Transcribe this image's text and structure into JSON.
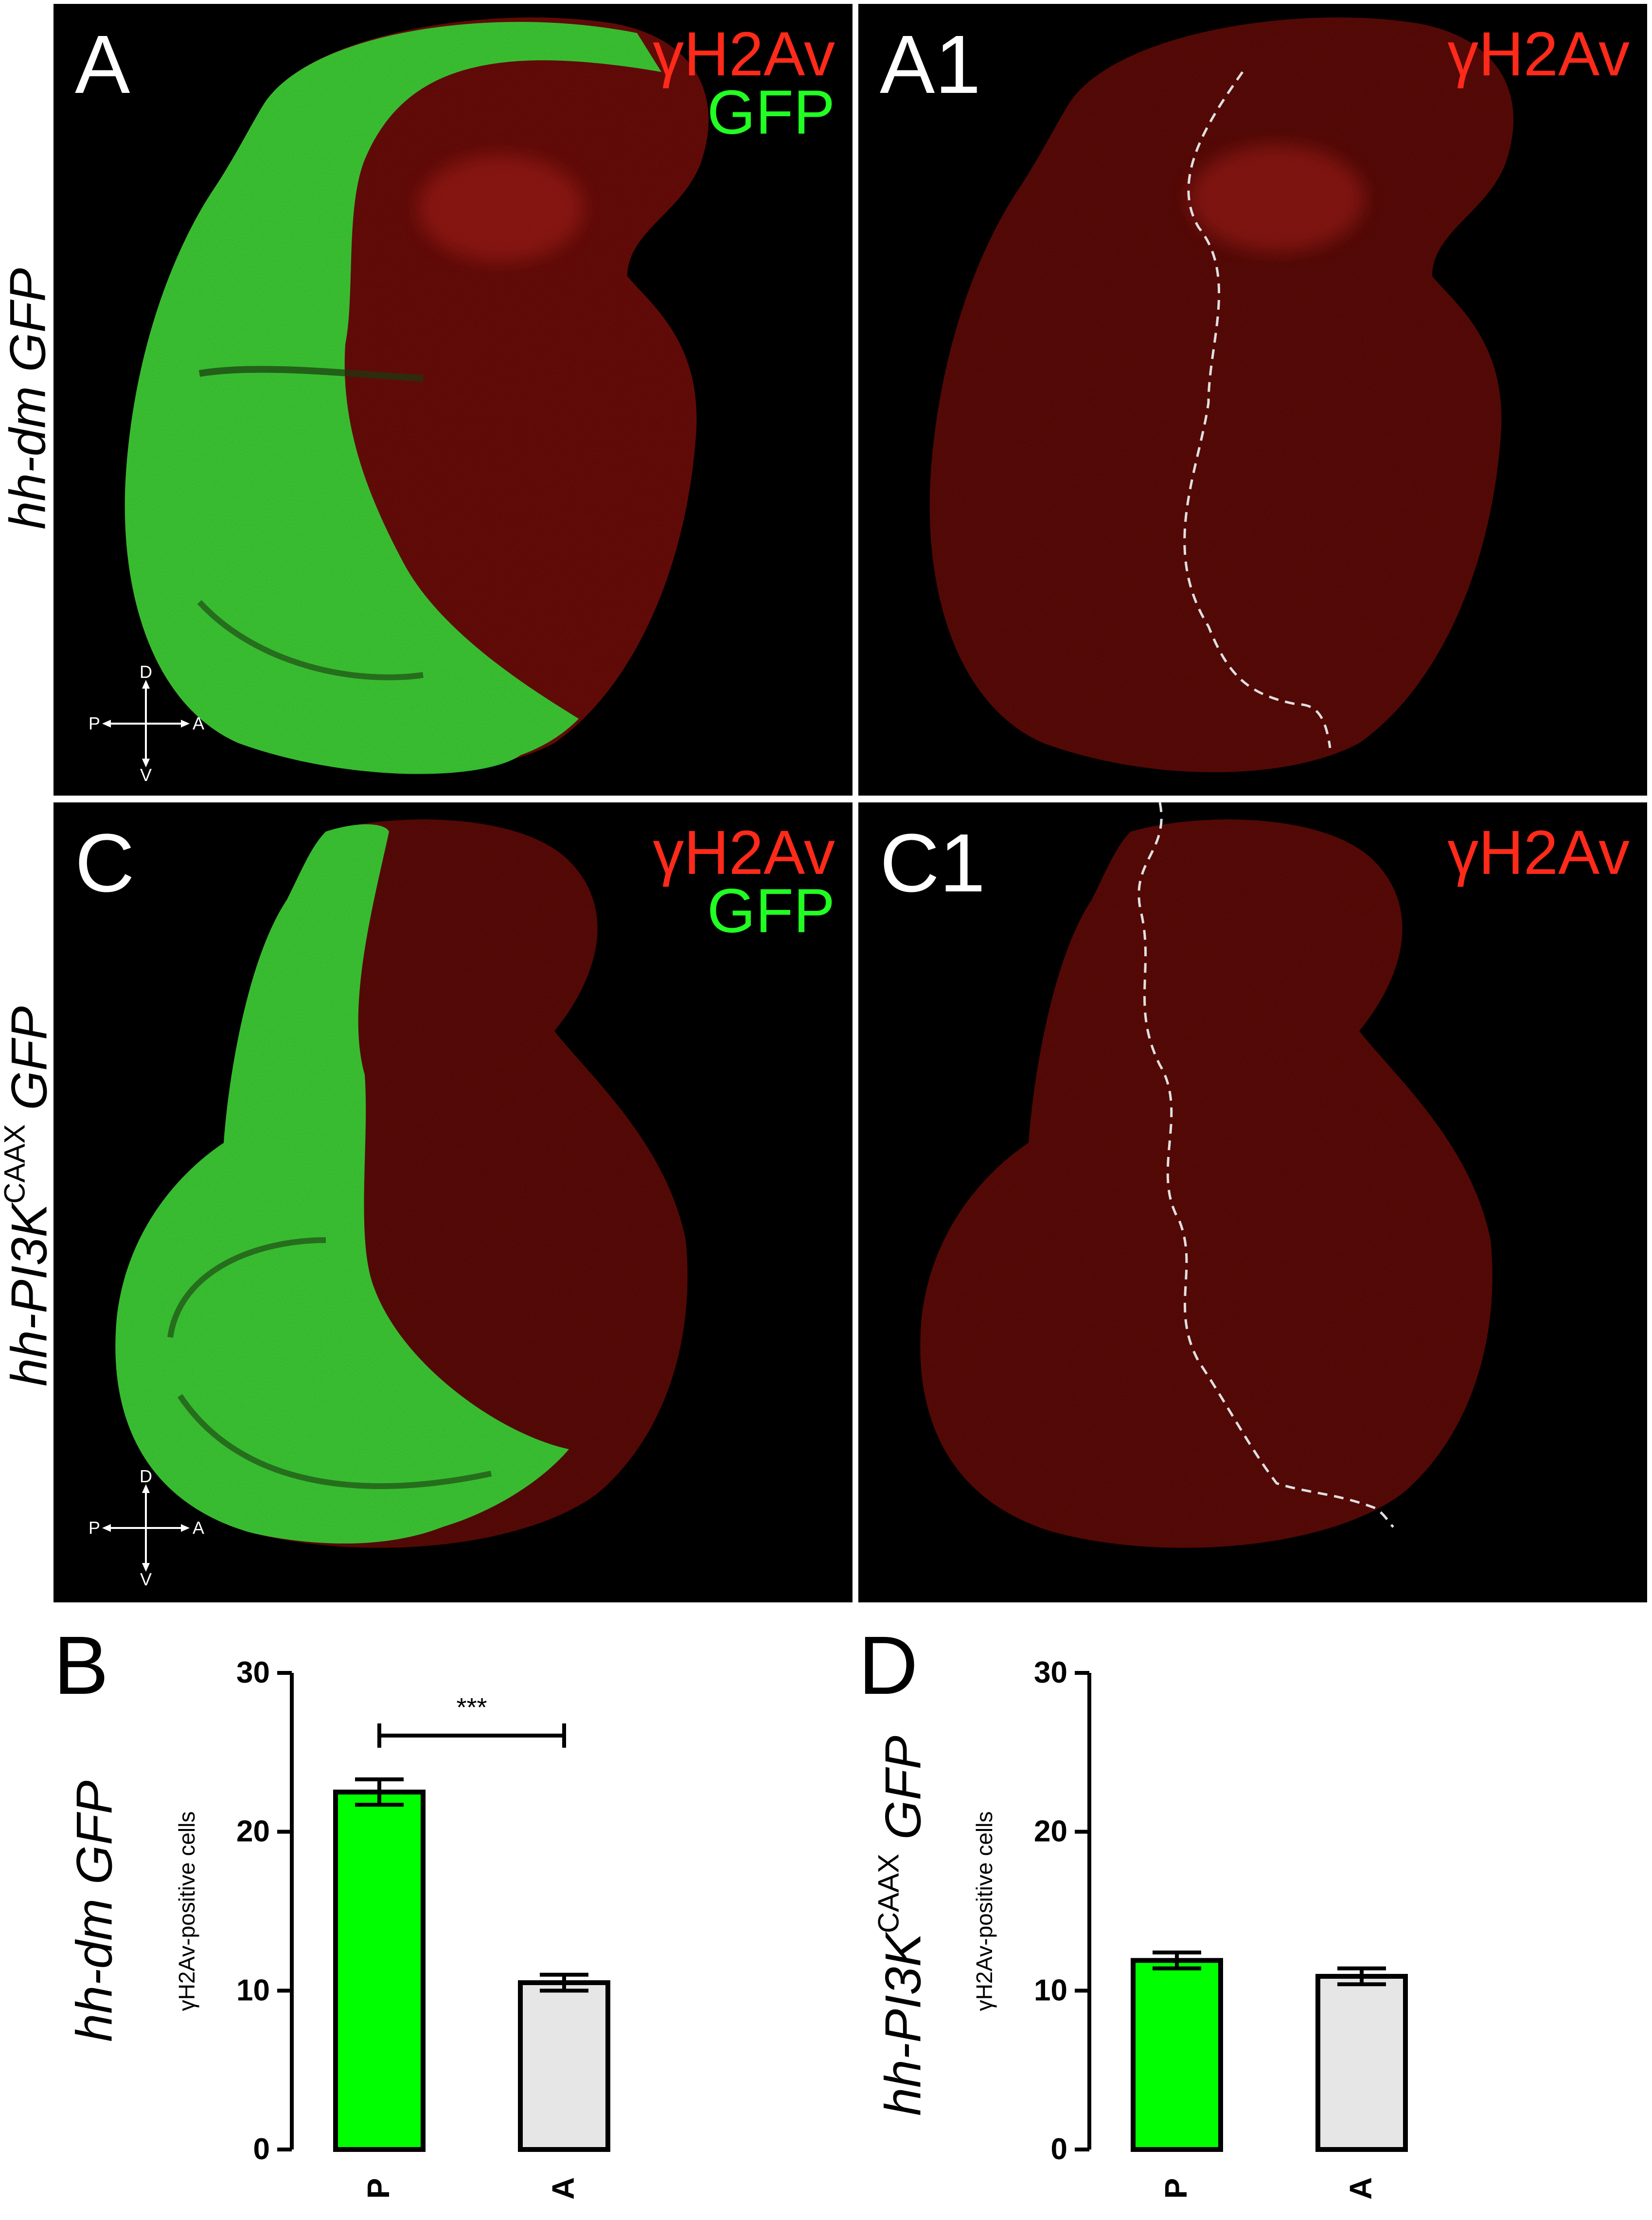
{
  "panels": {
    "A": {
      "label": "A",
      "stain_red": "γH2Av",
      "stain_green": "GFP"
    },
    "A1": {
      "label": "A1",
      "stain_red": "γH2Av"
    },
    "C": {
      "label": "C",
      "stain_red": "γH2Av",
      "stain_green": "GFP"
    },
    "C1": {
      "label": "C1",
      "stain_red": "γH2Av"
    }
  },
  "row_labels": {
    "top": "hh-dm GFP",
    "middle_main": "hh-PI3K",
    "middle_sup": "CAAX",
    "middle_tail": " GFP",
    "chart_d_main": "hh-PI3K",
    "chart_d_sup": "CAAX",
    "chart_d_tail": " GFP",
    "chart_b": "hh-dm GFP"
  },
  "compass": {
    "d": "D",
    "v": "V",
    "p": "P",
    "a": "A"
  },
  "colors": {
    "red": "#ff2a1a",
    "green": "#22ff22",
    "bar_p": "#00ff00",
    "bar_a": "#e6e6e6",
    "panel_bg": "#000000"
  },
  "chart_data": [
    {
      "panel": "B",
      "type": "bar",
      "categories": [
        "P",
        "A"
      ],
      "values": [
        22.5,
        10.5
      ],
      "errors": [
        0.8,
        0.5
      ],
      "ylabel": "γH2Av-positive cells",
      "ylim": [
        0,
        30
      ],
      "yticks": [
        0,
        10,
        20,
        30
      ],
      "significance": "***",
      "bar_colors": [
        "#00ff00",
        "#e6e6e6"
      ]
    },
    {
      "panel": "D",
      "type": "bar",
      "categories": [
        "P",
        "A"
      ],
      "values": [
        11.9,
        10.9
      ],
      "errors": [
        0.5,
        0.5
      ],
      "ylabel": "γH2Av-positive cells",
      "ylim": [
        0,
        30
      ],
      "yticks": [
        0,
        10,
        20,
        30
      ],
      "bar_colors": [
        "#00ff00",
        "#e6e6e6"
      ]
    }
  ]
}
